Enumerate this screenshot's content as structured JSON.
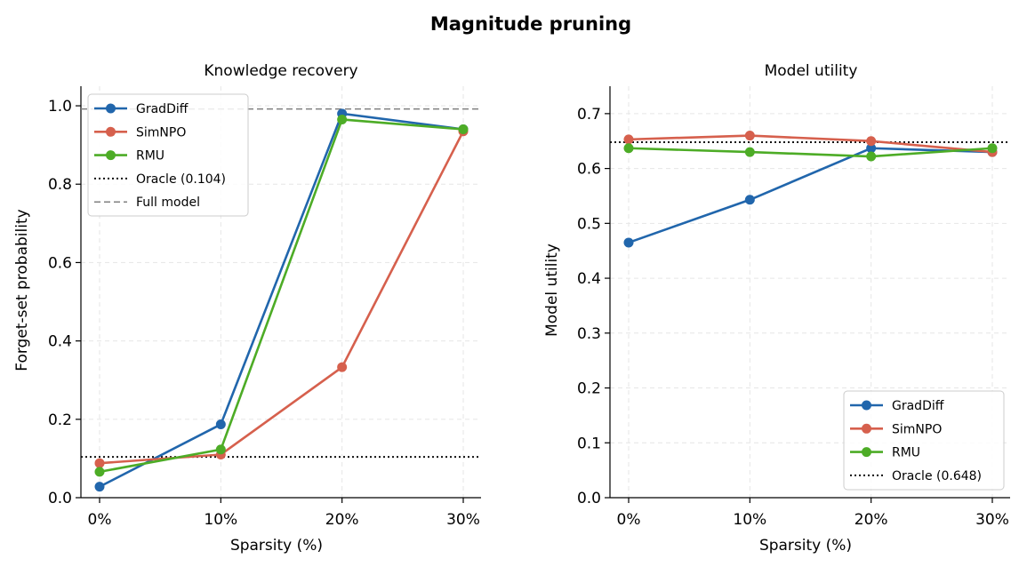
{
  "figure_title": "Magnitude pruning",
  "colors": {
    "GradDiff": "#2166ac",
    "SimNPO": "#d6604d",
    "RMU": "#4dac26",
    "oracle": "#111111",
    "full_model": "#808080",
    "grid": "#e6e6e6"
  },
  "chart_data": [
    {
      "type": "line",
      "title": "Knowledge recovery",
      "xlabel": "Sparsity (%)",
      "ylabel": "Forget-set probability",
      "categories": [
        "0%",
        "10%",
        "20%",
        "30%"
      ],
      "ylim": [
        0.0,
        1.05
      ],
      "yticks": [
        0.0,
        0.2,
        0.4,
        0.6,
        0.8,
        1.0
      ],
      "ytick_labels": [
        "0.0",
        "0.2",
        "0.4",
        "0.6",
        "0.8",
        "1.0"
      ],
      "grid": true,
      "legend_position": "top-left",
      "series": [
        {
          "name": "GradDiff",
          "values": [
            0.028,
            0.187,
            0.98,
            0.94
          ]
        },
        {
          "name": "SimNPO",
          "values": [
            0.088,
            0.11,
            0.333,
            0.935
          ]
        },
        {
          "name": "RMU",
          "values": [
            0.066,
            0.123,
            0.965,
            0.94
          ]
        }
      ],
      "reference_lines": [
        {
          "name": "Oracle (0.104)",
          "value": 0.104,
          "style": "dotted"
        },
        {
          "name": "Full model",
          "value": 0.992,
          "style": "dashed"
        }
      ]
    },
    {
      "type": "line",
      "title": "Model utility",
      "xlabel": "Sparsity (%)",
      "ylabel": "Model utility",
      "categories": [
        "0%",
        "10%",
        "20%",
        "30%"
      ],
      "ylim": [
        0.0,
        0.75
      ],
      "yticks": [
        0.0,
        0.1,
        0.2,
        0.3,
        0.4,
        0.5,
        0.6,
        0.7
      ],
      "ytick_labels": [
        "0.0",
        "0.1",
        "0.2",
        "0.3",
        "0.4",
        "0.5",
        "0.6",
        "0.7"
      ],
      "grid": true,
      "legend_position": "bottom-right",
      "series": [
        {
          "name": "GradDiff",
          "values": [
            0.465,
            0.543,
            0.637,
            0.63
          ]
        },
        {
          "name": "SimNPO",
          "values": [
            0.653,
            0.66,
            0.65,
            0.63
          ]
        },
        {
          "name": "RMU",
          "values": [
            0.637,
            0.63,
            0.622,
            0.637
          ]
        }
      ],
      "reference_lines": [
        {
          "name": "Oracle (0.648)",
          "value": 0.648,
          "style": "dotted"
        }
      ]
    }
  ]
}
